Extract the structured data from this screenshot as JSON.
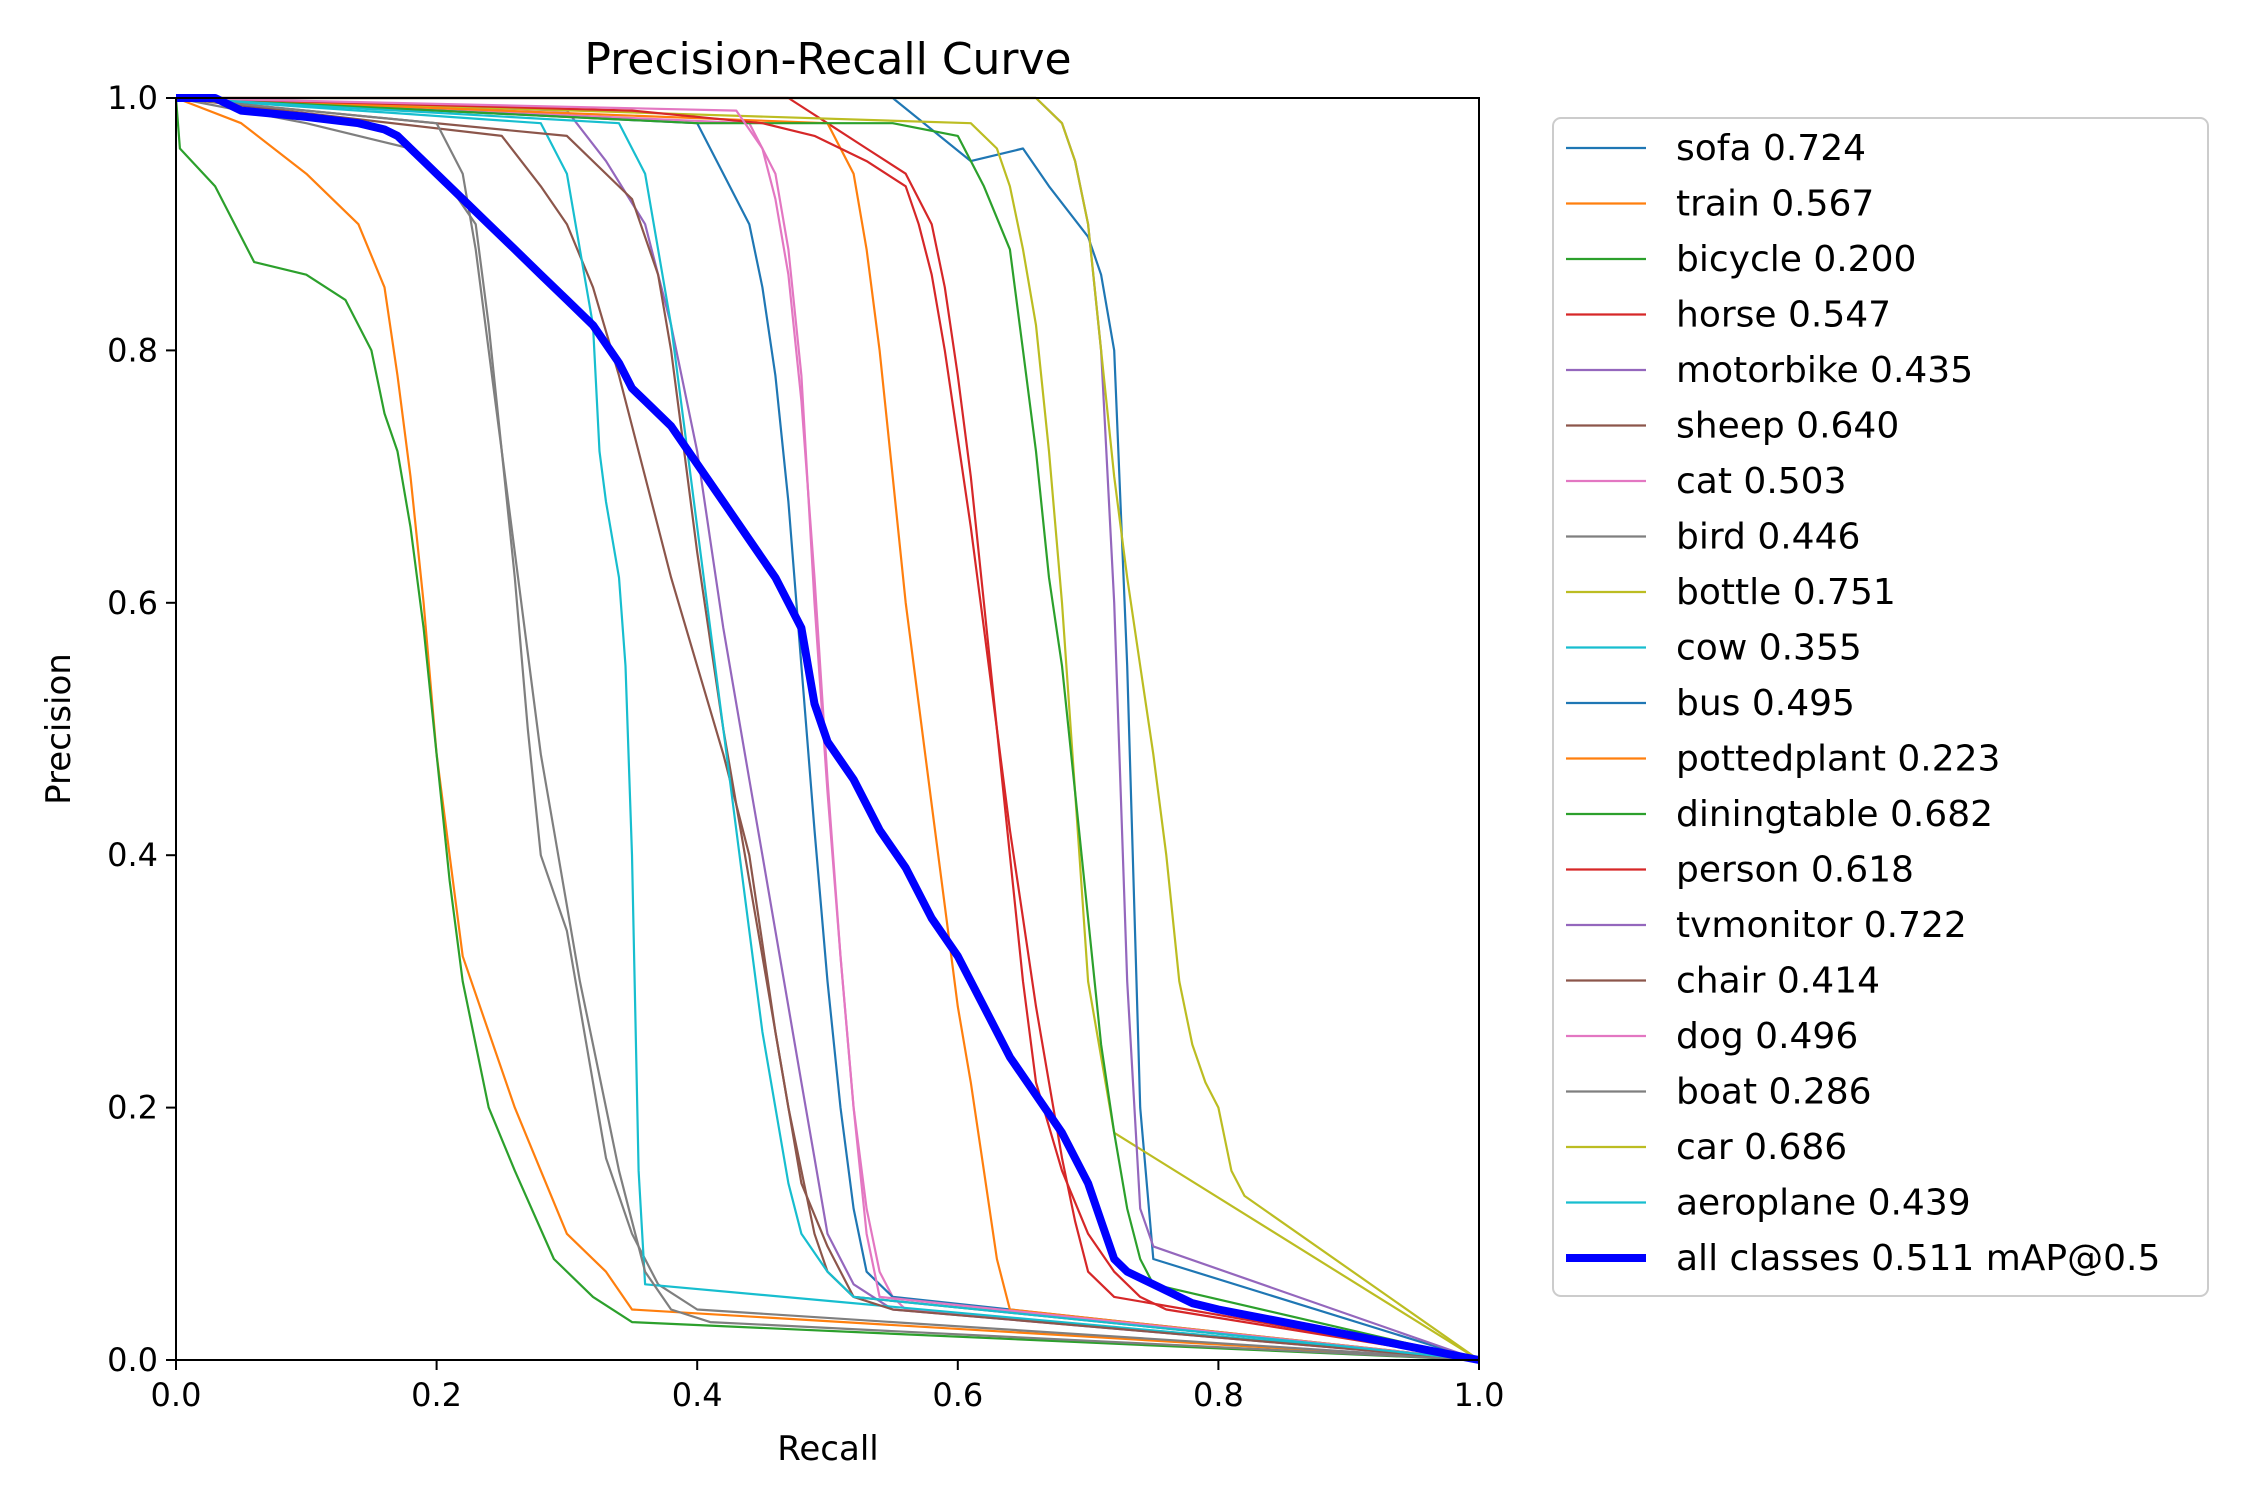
{
  "chart_data": {
    "type": "line",
    "title": "Precision-Recall Curve",
    "xlabel": "Recall",
    "ylabel": "Precision",
    "xlim": [
      0,
      1
    ],
    "ylim": [
      0,
      1
    ],
    "xticks": [
      "0.0",
      "0.2",
      "0.4",
      "0.6",
      "0.8",
      "1.0"
    ],
    "yticks": [
      "0.0",
      "0.2",
      "0.4",
      "0.6",
      "0.8",
      "1.0"
    ],
    "grid": false,
    "legend_position": "outside-right",
    "series": [
      {
        "name": "sofa 0.724",
        "color": "#1f77b4",
        "x": [
          0.0,
          0.55,
          0.61,
          0.65,
          0.67,
          0.7,
          0.71,
          0.72,
          0.73,
          0.74,
          0.75,
          1.0
        ],
        "y": [
          1.0,
          1.0,
          0.95,
          0.96,
          0.93,
          0.89,
          0.86,
          0.8,
          0.55,
          0.2,
          0.08,
          0.0
        ]
      },
      {
        "name": "train 0.567",
        "color": "#ff7f0e",
        "x": [
          0.0,
          0.05,
          0.1,
          0.14,
          0.16,
          0.17,
          0.18,
          0.19,
          0.2,
          0.21,
          0.22,
          0.24,
          0.26,
          0.28,
          0.3,
          0.33,
          0.35,
          1.0
        ],
        "y": [
          1.0,
          0.98,
          0.94,
          0.9,
          0.85,
          0.78,
          0.7,
          0.6,
          0.48,
          0.4,
          0.32,
          0.26,
          0.2,
          0.15,
          0.1,
          0.07,
          0.04,
          0.0
        ]
      },
      {
        "name": "bicycle 0.200",
        "color": "#2ca02c",
        "x": [
          0.0,
          0.003,
          0.03,
          0.06,
          0.1,
          0.13,
          0.15,
          0.16,
          0.17,
          0.18,
          0.19,
          0.2,
          0.21,
          0.22,
          0.24,
          0.26,
          0.29,
          0.32,
          0.35,
          1.0
        ],
        "y": [
          1.0,
          0.96,
          0.93,
          0.87,
          0.86,
          0.84,
          0.8,
          0.75,
          0.72,
          0.66,
          0.58,
          0.48,
          0.38,
          0.3,
          0.2,
          0.15,
          0.08,
          0.05,
          0.03,
          0.0
        ]
      },
      {
        "name": "horse 0.547",
        "color": "#d62728",
        "x": [
          0.0,
          0.47,
          0.5,
          0.53,
          0.56,
          0.57,
          0.58,
          0.59,
          0.6,
          0.61,
          0.62,
          0.63,
          0.64,
          0.65,
          0.66,
          0.68,
          0.7,
          0.72,
          0.74,
          0.76,
          1.0
        ],
        "y": [
          1.0,
          1.0,
          0.98,
          0.96,
          0.94,
          0.92,
          0.9,
          0.85,
          0.78,
          0.7,
          0.6,
          0.5,
          0.4,
          0.3,
          0.22,
          0.15,
          0.1,
          0.07,
          0.05,
          0.04,
          0.0
        ]
      },
      {
        "name": "motorbike 0.435",
        "color": "#9467bd",
        "x": [
          0.0,
          0.3,
          0.33,
          0.36,
          0.38,
          0.4,
          0.41,
          0.42,
          0.43,
          0.44,
          0.45,
          0.46,
          0.47,
          0.48,
          0.49,
          0.5,
          0.52,
          0.55,
          1.0
        ],
        "y": [
          1.0,
          0.99,
          0.95,
          0.9,
          0.82,
          0.72,
          0.65,
          0.58,
          0.52,
          0.46,
          0.4,
          0.34,
          0.28,
          0.22,
          0.16,
          0.1,
          0.06,
          0.04,
          0.0
        ]
      },
      {
        "name": "sheep 0.640",
        "color": "#8c564b",
        "x": [
          0.0,
          0.25,
          0.28,
          0.3,
          0.32,
          0.34,
          0.36,
          0.38,
          0.4,
          0.42,
          0.44,
          0.45,
          0.46,
          0.47,
          0.48,
          0.5,
          0.52,
          1.0
        ],
        "y": [
          1.0,
          0.97,
          0.93,
          0.9,
          0.85,
          0.78,
          0.7,
          0.62,
          0.55,
          0.48,
          0.4,
          0.33,
          0.26,
          0.2,
          0.14,
          0.09,
          0.05,
          0.0
        ]
      },
      {
        "name": "cat 0.503",
        "color": "#e377c2",
        "x": [
          0.0,
          0.44,
          0.46,
          0.47,
          0.48,
          0.49,
          0.5,
          0.51,
          0.52,
          0.53,
          0.54,
          0.55,
          0.56,
          1.0
        ],
        "y": [
          1.0,
          0.98,
          0.94,
          0.88,
          0.78,
          0.6,
          0.45,
          0.32,
          0.2,
          0.12,
          0.07,
          0.05,
          0.04,
          0.0
        ]
      },
      {
        "name": "bird 0.446",
        "color": "#7f7f7f",
        "x": [
          0.0,
          0.1,
          0.18,
          0.21,
          0.23,
          0.24,
          0.25,
          0.26,
          0.27,
          0.28,
          0.3,
          0.31,
          0.32,
          0.33,
          0.35,
          0.37,
          0.4,
          1.0
        ],
        "y": [
          1.0,
          0.98,
          0.96,
          0.93,
          0.9,
          0.82,
          0.72,
          0.62,
          0.5,
          0.4,
          0.34,
          0.28,
          0.22,
          0.16,
          0.1,
          0.06,
          0.04,
          0.0
        ]
      },
      {
        "name": "bottle 0.751",
        "color": "#bcbd22",
        "x": [
          0.0,
          0.61,
          0.63,
          0.64,
          0.65,
          0.66,
          0.67,
          0.68,
          0.69,
          0.7,
          0.72,
          1.0
        ],
        "y": [
          1.0,
          0.98,
          0.96,
          0.93,
          0.88,
          0.82,
          0.72,
          0.6,
          0.45,
          0.3,
          0.18,
          0.0
        ]
      },
      {
        "name": "cow 0.355",
        "color": "#17becf",
        "x": [
          0.0,
          0.28,
          0.3,
          0.31,
          0.32,
          0.325,
          0.33,
          0.34,
          0.345,
          0.35,
          0.355,
          0.36,
          1.0
        ],
        "y": [
          1.0,
          0.98,
          0.94,
          0.88,
          0.82,
          0.72,
          0.68,
          0.62,
          0.55,
          0.4,
          0.15,
          0.06,
          0.0
        ]
      },
      {
        "name": "bus 0.495",
        "color": "#1f77b4",
        "x": [
          0.0,
          0.4,
          0.42,
          0.44,
          0.45,
          0.46,
          0.47,
          0.48,
          0.49,
          0.5,
          0.51,
          0.52,
          0.53,
          0.55,
          1.0
        ],
        "y": [
          1.0,
          0.98,
          0.94,
          0.9,
          0.85,
          0.78,
          0.68,
          0.55,
          0.42,
          0.3,
          0.2,
          0.12,
          0.07,
          0.05,
          0.0
        ]
      },
      {
        "name": "pottedplant 0.223",
        "color": "#ff7f0e",
        "x": [
          0.0,
          0.5,
          0.52,
          0.53,
          0.54,
          0.55,
          0.56,
          0.57,
          0.58,
          0.59,
          0.6,
          0.61,
          0.62,
          0.63,
          0.64,
          1.0
        ],
        "y": [
          1.0,
          0.98,
          0.94,
          0.88,
          0.8,
          0.7,
          0.6,
          0.52,
          0.44,
          0.36,
          0.28,
          0.22,
          0.15,
          0.08,
          0.04,
          0.0
        ]
      },
      {
        "name": "diningtable 0.682",
        "color": "#2ca02c",
        "x": [
          0.0,
          0.4,
          0.55,
          0.6,
          0.62,
          0.64,
          0.65,
          0.66,
          0.67,
          0.68,
          0.69,
          0.7,
          0.71,
          0.72,
          0.73,
          0.74,
          0.75,
          1.0
        ],
        "y": [
          1.0,
          0.98,
          0.98,
          0.97,
          0.93,
          0.88,
          0.8,
          0.72,
          0.62,
          0.55,
          0.45,
          0.35,
          0.25,
          0.18,
          0.12,
          0.08,
          0.06,
          0.0
        ]
      },
      {
        "name": "person 0.618",
        "color": "#d62728",
        "x": [
          0.0,
          0.35,
          0.45,
          0.49,
          0.53,
          0.56,
          0.57,
          0.58,
          0.59,
          0.6,
          0.61,
          0.62,
          0.63,
          0.64,
          0.65,
          0.66,
          0.67,
          0.68,
          0.69,
          0.7,
          0.72,
          1.0
        ],
        "y": [
          1.0,
          0.99,
          0.98,
          0.97,
          0.95,
          0.93,
          0.9,
          0.86,
          0.8,
          0.73,
          0.66,
          0.58,
          0.5,
          0.42,
          0.35,
          0.28,
          0.22,
          0.16,
          0.11,
          0.07,
          0.05,
          0.0
        ]
      },
      {
        "name": "tvmonitor 0.722",
        "color": "#9467bd",
        "x": [
          0.0,
          0.66,
          0.67,
          0.68,
          0.69,
          0.7,
          0.71,
          0.72,
          0.73,
          0.74,
          0.75,
          1.0
        ],
        "y": [
          1.0,
          1.0,
          0.99,
          0.98,
          0.95,
          0.9,
          0.8,
          0.6,
          0.3,
          0.12,
          0.09,
          0.0
        ]
      },
      {
        "name": "chair 0.414",
        "color": "#8c564b",
        "x": [
          0.0,
          0.3,
          0.35,
          0.37,
          0.38,
          0.39,
          0.4,
          0.41,
          0.42,
          0.43,
          0.44,
          0.45,
          0.46,
          0.47,
          0.48,
          0.49,
          0.5,
          0.52,
          0.55,
          1.0
        ],
        "y": [
          1.0,
          0.97,
          0.92,
          0.86,
          0.8,
          0.72,
          0.64,
          0.57,
          0.5,
          0.44,
          0.38,
          0.32,
          0.26,
          0.2,
          0.15,
          0.1,
          0.07,
          0.05,
          0.04,
          0.0
        ]
      },
      {
        "name": "dog 0.496",
        "color": "#e377c2",
        "x": [
          0.0,
          0.43,
          0.45,
          0.46,
          0.47,
          0.48,
          0.49,
          0.5,
          0.51,
          0.52,
          0.53,
          0.54,
          1.0
        ],
        "y": [
          1.0,
          0.99,
          0.96,
          0.92,
          0.86,
          0.76,
          0.62,
          0.46,
          0.32,
          0.2,
          0.1,
          0.05,
          0.0
        ]
      },
      {
        "name": "boat 0.286",
        "color": "#7f7f7f",
        "x": [
          0.0,
          0.2,
          0.22,
          0.23,
          0.24,
          0.25,
          0.26,
          0.27,
          0.28,
          0.29,
          0.3,
          0.31,
          0.32,
          0.33,
          0.34,
          0.35,
          0.36,
          0.38,
          0.41,
          1.0
        ],
        "y": [
          1.0,
          0.98,
          0.94,
          0.88,
          0.8,
          0.72,
          0.64,
          0.56,
          0.48,
          0.42,
          0.36,
          0.3,
          0.25,
          0.2,
          0.15,
          0.11,
          0.07,
          0.04,
          0.03,
          0.0
        ]
      },
      {
        "name": "car 0.686",
        "color": "#bcbd22",
        "x": [
          0.0,
          0.66,
          0.68,
          0.69,
          0.7,
          0.71,
          0.72,
          0.73,
          0.74,
          0.75,
          0.76,
          0.77,
          0.78,
          0.79,
          0.8,
          0.81,
          0.82,
          1.0
        ],
        "y": [
          1.0,
          1.0,
          0.98,
          0.95,
          0.9,
          0.8,
          0.7,
          0.62,
          0.55,
          0.48,
          0.4,
          0.3,
          0.25,
          0.22,
          0.2,
          0.15,
          0.13,
          0.0
        ]
      },
      {
        "name": "aeroplane 0.439",
        "color": "#17becf",
        "x": [
          0.0,
          0.34,
          0.36,
          0.37,
          0.38,
          0.39,
          0.4,
          0.41,
          0.42,
          0.43,
          0.44,
          0.45,
          0.46,
          0.47,
          0.48,
          0.5,
          0.52,
          1.0
        ],
        "y": [
          1.0,
          0.98,
          0.94,
          0.88,
          0.82,
          0.74,
          0.66,
          0.58,
          0.5,
          0.42,
          0.34,
          0.26,
          0.2,
          0.14,
          0.1,
          0.07,
          0.05,
          0.0
        ]
      },
      {
        "name": "all classes 0.511 mAP@0.5",
        "color": "#0000ff",
        "bold": true,
        "x": [
          0.0,
          0.03,
          0.05,
          0.1,
          0.14,
          0.16,
          0.17,
          0.18,
          0.19,
          0.2,
          0.22,
          0.24,
          0.26,
          0.28,
          0.3,
          0.32,
          0.34,
          0.35,
          0.36,
          0.38,
          0.4,
          0.42,
          0.44,
          0.46,
          0.48,
          0.49,
          0.5,
          0.52,
          0.54,
          0.56,
          0.58,
          0.6,
          0.62,
          0.64,
          0.66,
          0.68,
          0.7,
          0.71,
          0.72,
          0.73,
          0.75,
          0.78,
          0.8,
          0.85,
          0.9,
          0.95,
          1.0
        ],
        "y": [
          1.0,
          1.0,
          0.99,
          0.985,
          0.98,
          0.975,
          0.97,
          0.96,
          0.95,
          0.94,
          0.92,
          0.9,
          0.88,
          0.86,
          0.84,
          0.82,
          0.79,
          0.77,
          0.76,
          0.74,
          0.71,
          0.68,
          0.65,
          0.62,
          0.58,
          0.52,
          0.49,
          0.46,
          0.42,
          0.39,
          0.35,
          0.32,
          0.28,
          0.24,
          0.21,
          0.18,
          0.14,
          0.11,
          0.08,
          0.07,
          0.06,
          0.045,
          0.04,
          0.03,
          0.02,
          0.01,
          0.0
        ]
      }
    ]
  }
}
